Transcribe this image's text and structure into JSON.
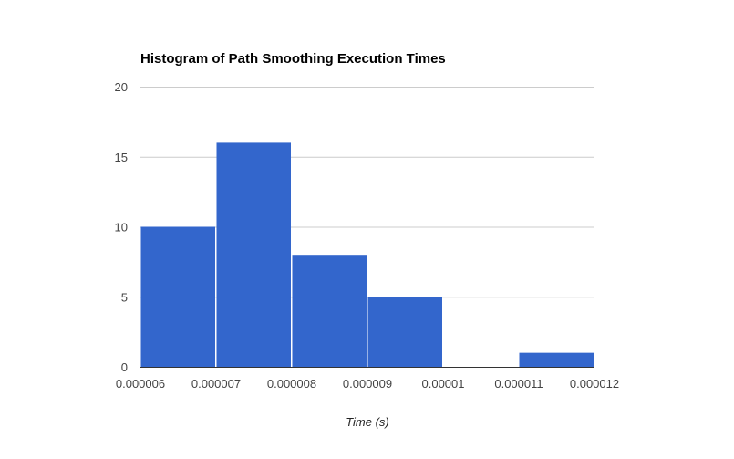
{
  "chart_data": {
    "type": "bar",
    "title": "Histogram of Path Smoothing Execution Times",
    "xlabel": "Time (s)",
    "ylabel": "",
    "bins": [
      {
        "start": 6e-06,
        "end": 7e-06,
        "count": 10
      },
      {
        "start": 7e-06,
        "end": 8e-06,
        "count": 16
      },
      {
        "start": 8e-06,
        "end": 9e-06,
        "count": 8
      },
      {
        "start": 9e-06,
        "end": 1e-05,
        "count": 5
      },
      {
        "start": 1e-05,
        "end": 1.1e-05,
        "count": 0
      },
      {
        "start": 1.1e-05,
        "end": 1.2e-05,
        "count": 1
      }
    ],
    "x_ticks": [
      "0.000006",
      "0.000007",
      "0.000008",
      "0.000009",
      "0.00001",
      "0.000011",
      "0.000012"
    ],
    "y_ticks": [
      "0",
      "5",
      "10",
      "15",
      "20"
    ],
    "xlim": [
      6e-06,
      1.2e-05
    ],
    "ylim": [
      0,
      20
    ],
    "grid": true,
    "legend": "none",
    "bar_color": "#3366cc",
    "grid_color": "#cccccc",
    "axis_color": "#333333",
    "tick_label_color": "#444444"
  }
}
